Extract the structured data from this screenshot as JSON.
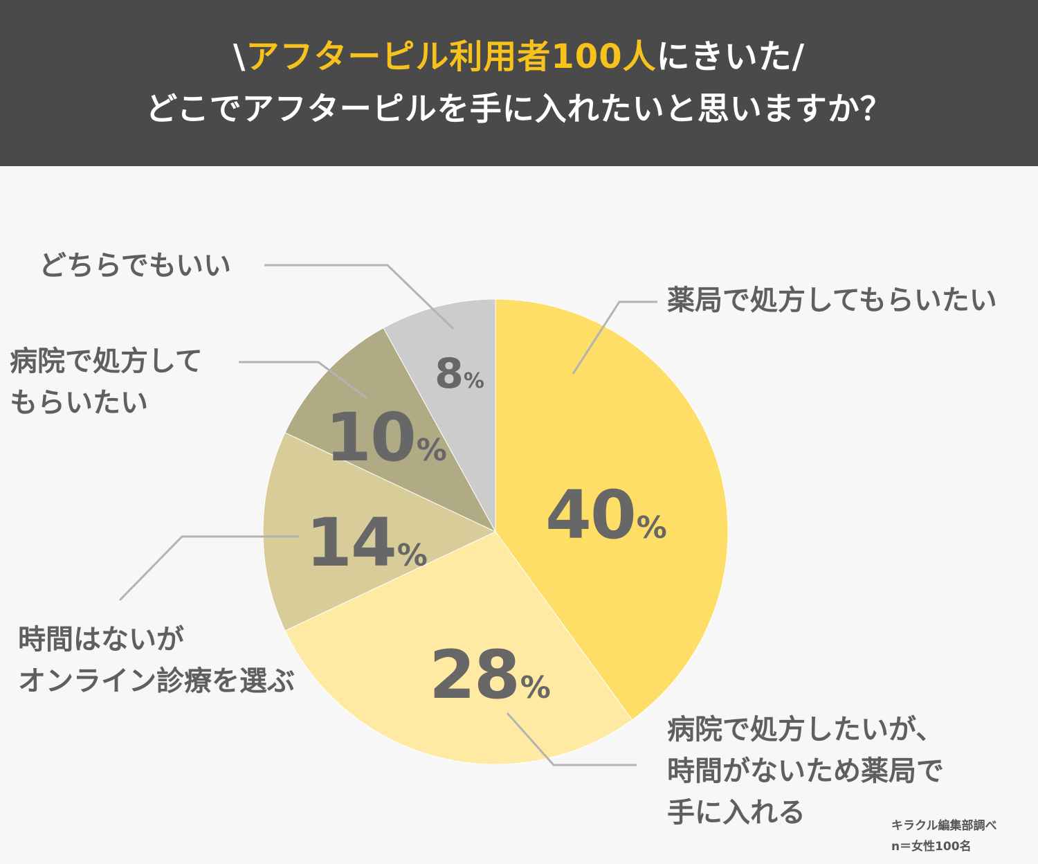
{
  "header": {
    "line1_prefix": "\\",
    "line1_highlight": "アフターピル利用者100人",
    "line1_suffix": "にきいた/",
    "line2": "どこでアフターピルを手に入れたいと思いますか？"
  },
  "chart_data": {
    "type": "pie",
    "title": "どこでアフターピルを手に入れたいと思いますか？",
    "unit": "%",
    "slices": [
      {
        "label": "薬局で処方してもらいたい",
        "value": 40,
        "color": "#fede67"
      },
      {
        "label": "病院で処方したいが、時間がないため薬局で手に入れる",
        "value": 28,
        "color": "#feeaa3"
      },
      {
        "label": "時間はないがオンライン診療を選ぶ",
        "value": 14,
        "color": "#d8cc98"
      },
      {
        "label": "病院で処方してもらいたい",
        "value": 10,
        "color": "#b0aa85"
      },
      {
        "label": "どちらでもいい",
        "value": 8,
        "color": "#cccccc"
      }
    ]
  },
  "labels": {
    "s0": "薬局で処方してもらいたい",
    "s1_l1": "病院で処方したいが、",
    "s1_l2": "時間がないため薬局で",
    "s1_l3": "手に入れる",
    "s2_l1": "時間はないが",
    "s2_l2": "オンライン診療を選ぶ",
    "s3_l1": "病院で処方して",
    "s3_l2": "もらいたい",
    "s4": "どちらでもいい"
  },
  "pct_symbol": "%",
  "source": {
    "line1": "キラクル編集部調べ",
    "line2": "n＝女性100名"
  }
}
